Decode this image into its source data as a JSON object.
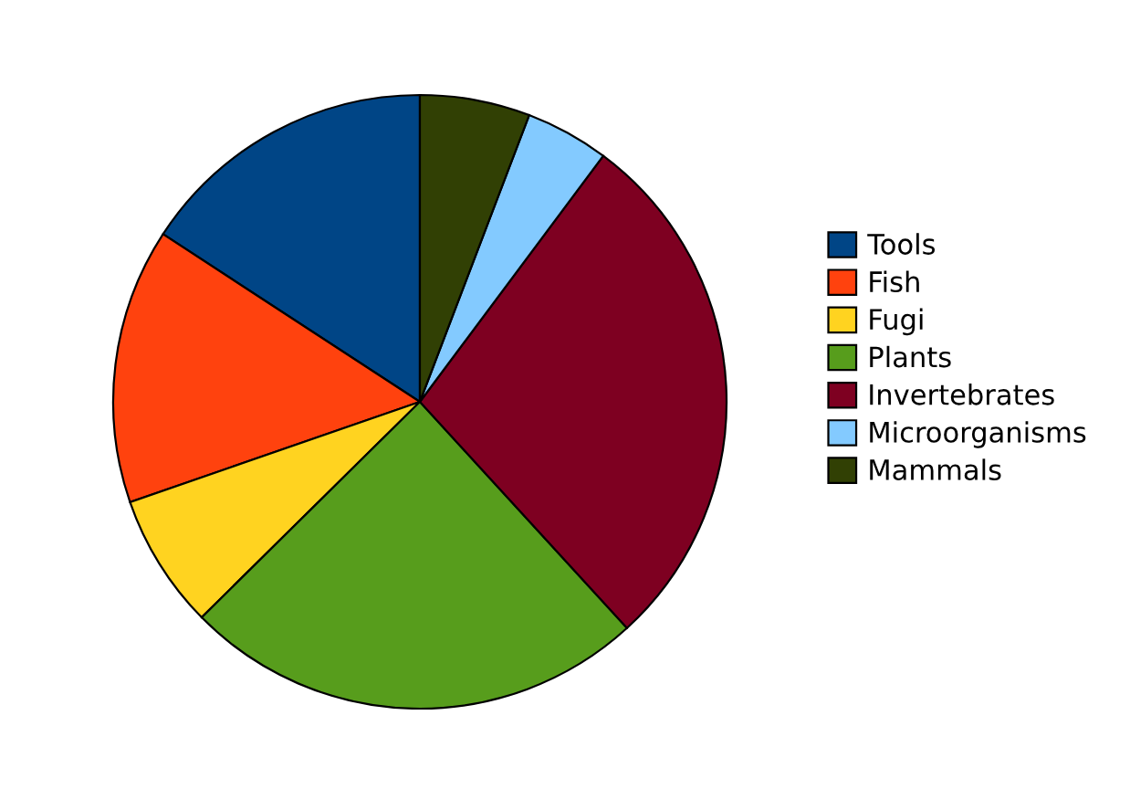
{
  "chart_data": {
    "type": "pie",
    "categories": [
      "Tools",
      "Fish",
      "Fugi",
      "Plants",
      "Invertebrates",
      "Microorganisms",
      "Mammals"
    ],
    "values": [
      15.8,
      14.5,
      7.1,
      24.4,
      28.0,
      4.4,
      5.8
    ],
    "colors": [
      "#004586",
      "#ff420e",
      "#ffd320",
      "#579d1c",
      "#7e0021",
      "#83caff",
      "#314004"
    ],
    "legend": "right"
  }
}
